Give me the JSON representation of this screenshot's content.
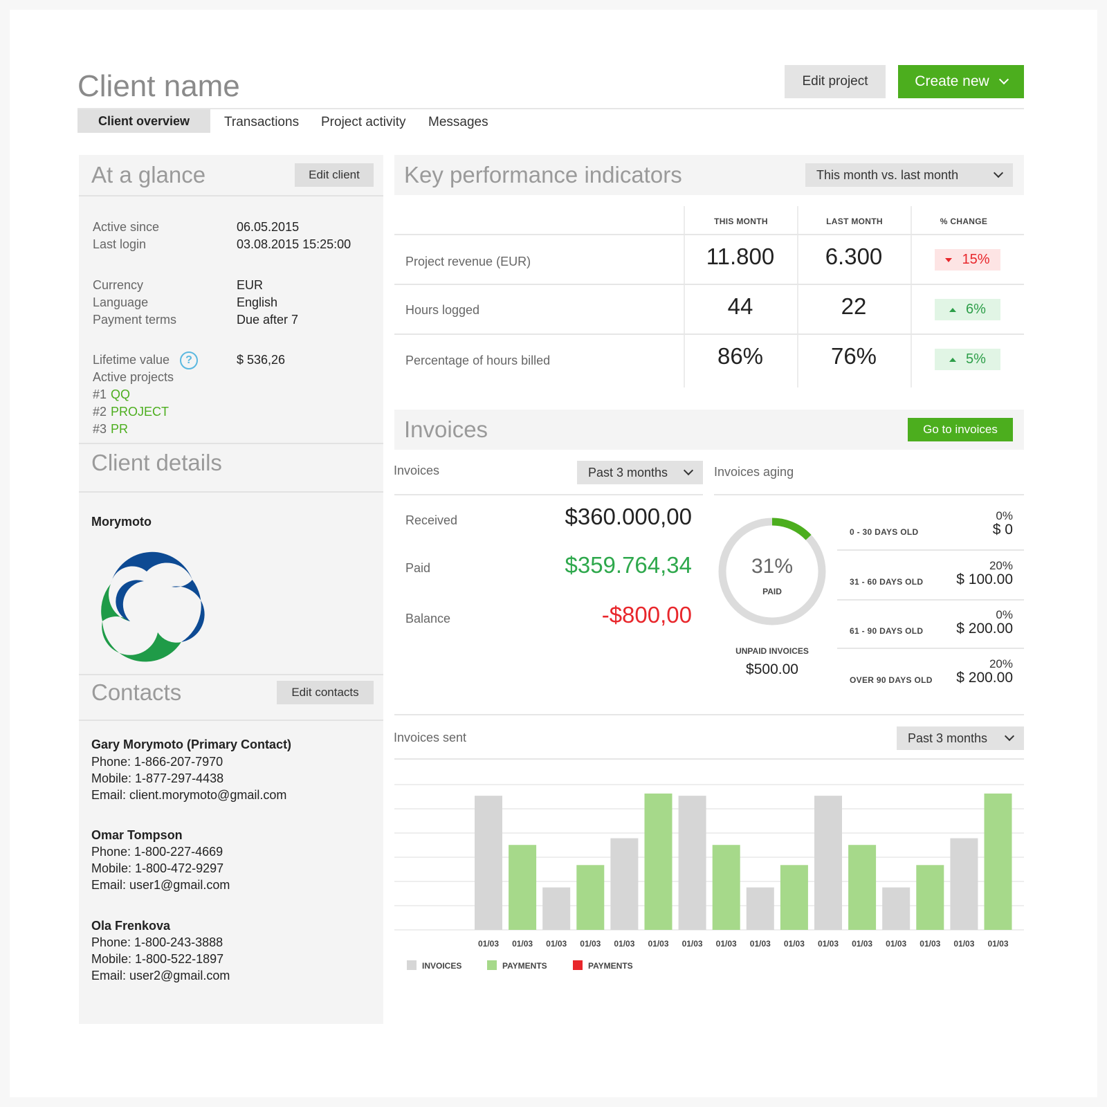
{
  "header": {
    "title": "Client name",
    "edit_project": "Edit project",
    "create_new": "Create new"
  },
  "tabs": [
    "Client overview",
    "Transactions",
    "Project activity",
    "Messages"
  ],
  "glance": {
    "title": "At a glance",
    "edit_client": "Edit client",
    "active_since_label": "Active since",
    "active_since": "06.05.2015",
    "last_login_label": "Last login",
    "last_login": "03.08.2015 15:25:00",
    "currency_label": "Currency",
    "currency": "EUR",
    "language_label": "Language",
    "language": "English",
    "payment_terms_label": "Payment terms",
    "payment_terms": "Due after 7",
    "lifetime_label": "Lifetime value",
    "lifetime": "$ 536,26",
    "active_projects_label": "Active projects",
    "projects": [
      {
        "num": "#1",
        "name": "QQ"
      },
      {
        "num": "#2",
        "name": "PROJECT"
      },
      {
        "num": "#3",
        "name": "PR"
      }
    ]
  },
  "client_details": {
    "title": "Client details",
    "company": "Morymoto"
  },
  "contacts": {
    "title": "Contacts",
    "edit": "Edit contacts",
    "list": [
      {
        "name": "Gary Morymoto (Primary Contact)",
        "phone": "Phone: 1-866-207-7970",
        "mobile": "Mobile: 1-877-297-4438",
        "email": "Email: client.morymoto@gmail.com"
      },
      {
        "name": "Omar Tompson",
        "phone": "Phone: 1-800-227-4669",
        "mobile": "Mobile: 1-800-472-9297",
        "email": "Email: user1@gmail.com"
      },
      {
        "name": "Ola Frenkova",
        "phone": "Phone: 1-800-243-3888",
        "mobile": "Mobile: 1-800-522-1897",
        "email": "Email: user2@gmail.com"
      }
    ]
  },
  "kpi": {
    "title": "Key performance indicators",
    "period": "This month vs. last month",
    "columns": [
      "THIS MONTH",
      "LAST MONTH",
      "% CHANGE"
    ],
    "rows": [
      {
        "label": "Project revenue (EUR)",
        "this": "11.800",
        "last": "6.300",
        "change": "15%",
        "dir": "down"
      },
      {
        "label": "Hours logged",
        "this": "44",
        "last": "22",
        "change": "6%",
        "dir": "up"
      },
      {
        "label": "Percentage of hours billed",
        "this": "86%",
        "last": "76%",
        "change": "5%",
        "dir": "up"
      }
    ]
  },
  "invoices": {
    "title": "Invoices",
    "go": "Go to invoices",
    "sub_label": "Invoices",
    "period": "Past 3 months",
    "received_label": "Received",
    "received": "$360.000,00",
    "paid_label": "Paid",
    "paid": "$359.764,34",
    "balance_label": "Balance",
    "balance": "-$800,00",
    "aging_label": "Invoices aging",
    "paid_pct": "31%",
    "paid_word": "PAID",
    "paid_fraction": 0.31,
    "unpaid_label": "UNPAID INVOICES",
    "unpaid": "$500.00",
    "aging": [
      {
        "label": "0 - 30 DAYS OLD",
        "pct": "0%",
        "amount": "$ 0"
      },
      {
        "label": "31 - 60 DAYS OLD",
        "pct": "20%",
        "amount": "$ 100.00"
      },
      {
        "label": "61 - 90 DAYS OLD",
        "pct": "0%",
        "amount": "$ 200.00"
      },
      {
        "label": "OVER 90 DAYS OLD",
        "pct": "20%",
        "amount": "$ 200.00"
      }
    ]
  },
  "sent": {
    "title": "Invoices sent",
    "period": "Past 3 months"
  },
  "colors": {
    "green": "#4cae1e",
    "bar_gray": "#d6d6d6",
    "bar_green": "#a6d98a",
    "red": "#e8262b"
  },
  "chart_data": {
    "type": "bar",
    "categories": [
      "01/03",
      "01/03",
      "01/03",
      "01/03",
      "01/03",
      "01/03",
      "01/03",
      "01/03",
      "01/03",
      "01/03",
      "01/03",
      "01/03",
      "01/03",
      "01/03",
      "01/03",
      "01/03"
    ],
    "series_kinds": [
      "INVOICES",
      "PAYMENTS",
      "INVOICES",
      "PAYMENTS",
      "INVOICES",
      "PAYMENTS",
      "INVOICES",
      "PAYMENTS",
      "INVOICES",
      "PAYMENTS",
      "INVOICES",
      "PAYMENTS",
      "INVOICES",
      "PAYMENTS",
      "INVOICES",
      "PAYMENTS"
    ],
    "values": [
      6.0,
      3.8,
      1.9,
      2.9,
      4.1,
      6.1,
      6.0,
      3.8,
      1.9,
      2.9,
      6.0,
      3.8,
      1.9,
      2.9,
      4.1,
      6.1
    ],
    "ylim": [
      0,
      6.5
    ],
    "gridlines": 6,
    "legend": [
      {
        "name": "INVOICES",
        "color": "#d6d6d6"
      },
      {
        "name": "PAYMENTS",
        "color": "#a6d98a"
      },
      {
        "name": "PAYMENTS",
        "color": "#e8262b"
      }
    ],
    "legend_position": "bottom-left"
  }
}
